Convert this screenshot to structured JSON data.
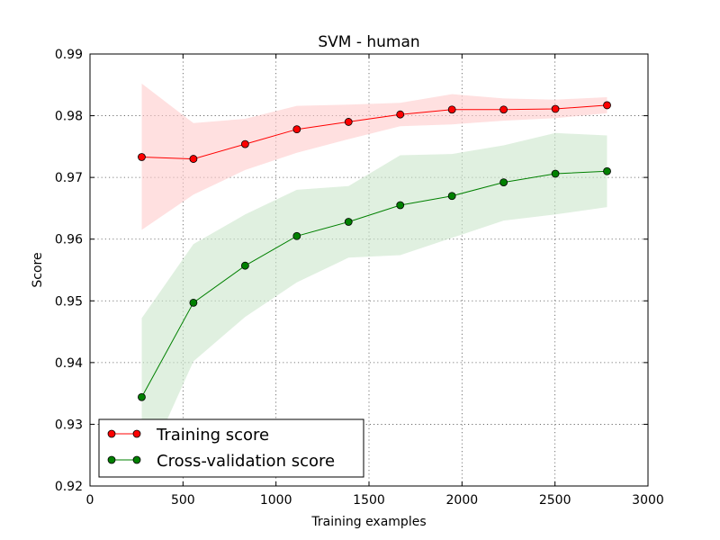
{
  "chart_data": {
    "type": "line",
    "title": "SVM - human",
    "xlabel": "Training examples",
    "ylabel": "Score",
    "xlim": [
      0,
      3000
    ],
    "ylim": [
      0.92,
      0.99
    ],
    "xticks": [
      0,
      500,
      1000,
      1500,
      2000,
      2500,
      3000
    ],
    "xtick_labels": [
      "0",
      "500",
      "1000",
      "1500",
      "2000",
      "2500",
      "3000"
    ],
    "yticks": [
      0.92,
      0.93,
      0.94,
      0.95,
      0.96,
      0.97,
      0.98,
      0.99
    ],
    "ytick_labels": [
      "0.92",
      "0.93",
      "0.94",
      "0.95",
      "0.96",
      "0.97",
      "0.98",
      "0.99"
    ],
    "grid": true,
    "legend_position": "lower-left",
    "x": [
      278,
      556,
      834,
      1112,
      1390,
      1668,
      1946,
      2224,
      2502,
      2780
    ],
    "series": [
      {
        "name": "Training score",
        "color": "#ff0000",
        "band_color": "#ffcccc",
        "values": [
          0.9733,
          0.973,
          0.9754,
          0.9778,
          0.979,
          0.9802,
          0.981,
          0.981,
          0.9811,
          0.9817
        ],
        "upper": [
          0.9852,
          0.9788,
          0.9795,
          0.9816,
          0.9818,
          0.9821,
          0.9835,
          0.9828,
          0.9826,
          0.983
        ],
        "lower": [
          0.9615,
          0.9672,
          0.9712,
          0.974,
          0.9762,
          0.9783,
          0.9786,
          0.9792,
          0.9796,
          0.9804
        ]
      },
      {
        "name": "Cross-validation score",
        "color": "#008000",
        "band_color": "#cce6cc",
        "values": [
          0.9344,
          0.9497,
          0.9557,
          0.9605,
          0.9628,
          0.9655,
          0.967,
          0.9692,
          0.9706,
          0.971
        ],
        "upper": [
          0.9472,
          0.9592,
          0.964,
          0.968,
          0.9686,
          0.9736,
          0.9738,
          0.9752,
          0.9772,
          0.9768
        ],
        "lower": [
          0.9216,
          0.9402,
          0.9474,
          0.953,
          0.957,
          0.9574,
          0.9602,
          0.963,
          0.964,
          0.9652
        ]
      }
    ]
  }
}
